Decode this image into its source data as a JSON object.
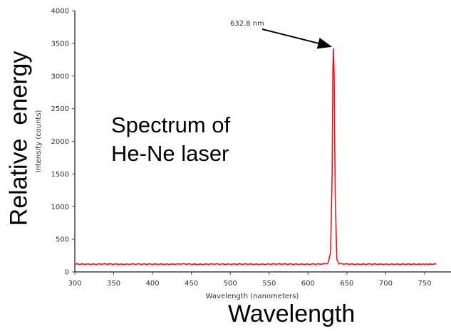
{
  "chart_data": {
    "type": "line",
    "xlabel": "Wavelength (nanometers)",
    "ylabel": "Intensity (counts)",
    "xlim": [
      300,
      765
    ],
    "ylim": [
      0,
      4000
    ],
    "xticks": [
      300,
      350,
      400,
      450,
      500,
      550,
      600,
      650,
      700,
      750
    ],
    "yticks": [
      0,
      500,
      1000,
      1500,
      2000,
      2500,
      3000,
      3500,
      4000
    ],
    "grid": false,
    "series": [
      {
        "color": "#e8141c",
        "x": [
          300,
          320,
          340,
          360,
          380,
          400,
          420,
          440,
          460,
          480,
          500,
          520,
          540,
          560,
          580,
          600,
          620,
          626,
          629,
          631,
          632,
          632.8,
          633.6,
          635,
          637,
          640,
          660,
          680,
          700,
          720,
          740,
          765
        ],
        "y": [
          120,
          118,
          121,
          117,
          120,
          119,
          118,
          122,
          116,
          121,
          118,
          120,
          117,
          121,
          119,
          118,
          122,
          135,
          300,
          1500,
          3100,
          3420,
          3000,
          1200,
          200,
          125,
          118,
          120,
          117,
          119,
          118,
          119
        ]
      }
    ],
    "annotations": [
      {
        "text": "632.8 nm",
        "x": 632.8,
        "y": 3420
      }
    ]
  },
  "overlay": {
    "title_line1": "Spectrum of",
    "title_line2": "He-Ne laser",
    "y_big_label": "Relative  energy",
    "x_big_label": "Wavelength"
  }
}
